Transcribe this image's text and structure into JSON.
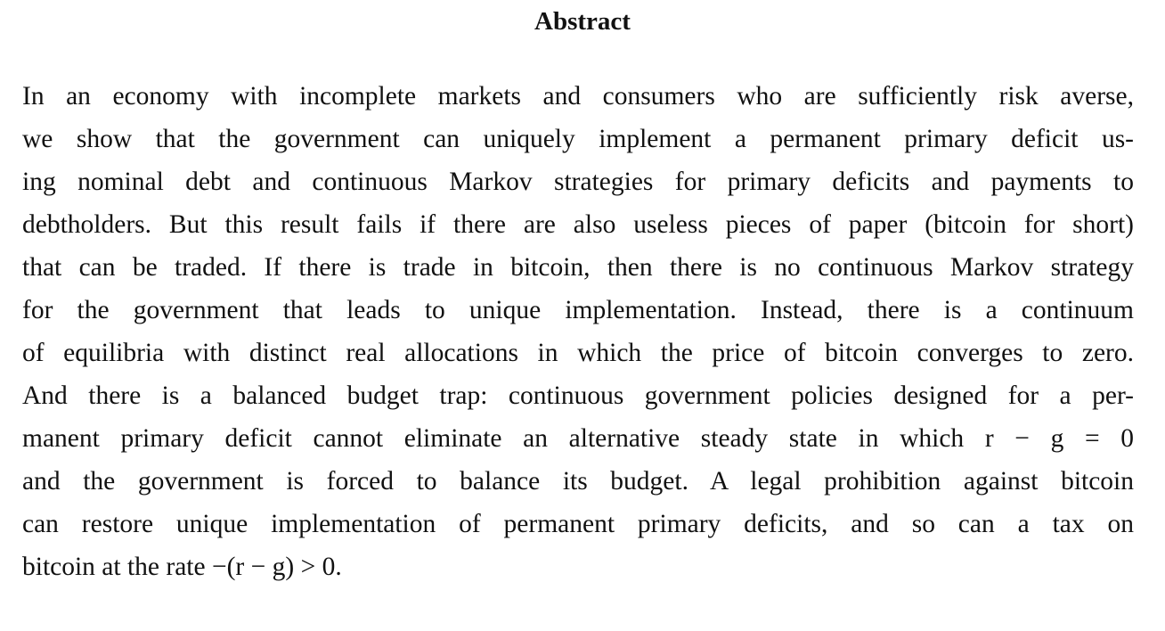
{
  "title": "Abstract",
  "abstract_lines": [
    "In an economy with incomplete markets and consumers who are sufficiently risk averse,",
    "we show that the government can uniquely implement a permanent primary deficit us-",
    "ing nominal debt and continuous Markov strategies for primary deficits and payments to",
    "debtholders. But this result fails if there are also useless pieces of paper (bitcoin for short)",
    "that can be traded. If there is trade in bitcoin, then there is no continuous Markov strategy",
    "for the government that leads to unique implementation. Instead, there is a continuum",
    "of equilibria with distinct real allocations in which the price of bitcoin converges to zero.",
    "And there is a balanced budget trap: continuous government policies designed for a per-",
    "manent primary deficit cannot eliminate an alternative steady state in which r − g = 0",
    "and the government is forced to balance its budget. A legal prohibition against bitcoin",
    "can restore unique implementation of permanent primary deficits, and so can a tax on",
    "bitcoin at the rate −(r − g) > 0."
  ]
}
